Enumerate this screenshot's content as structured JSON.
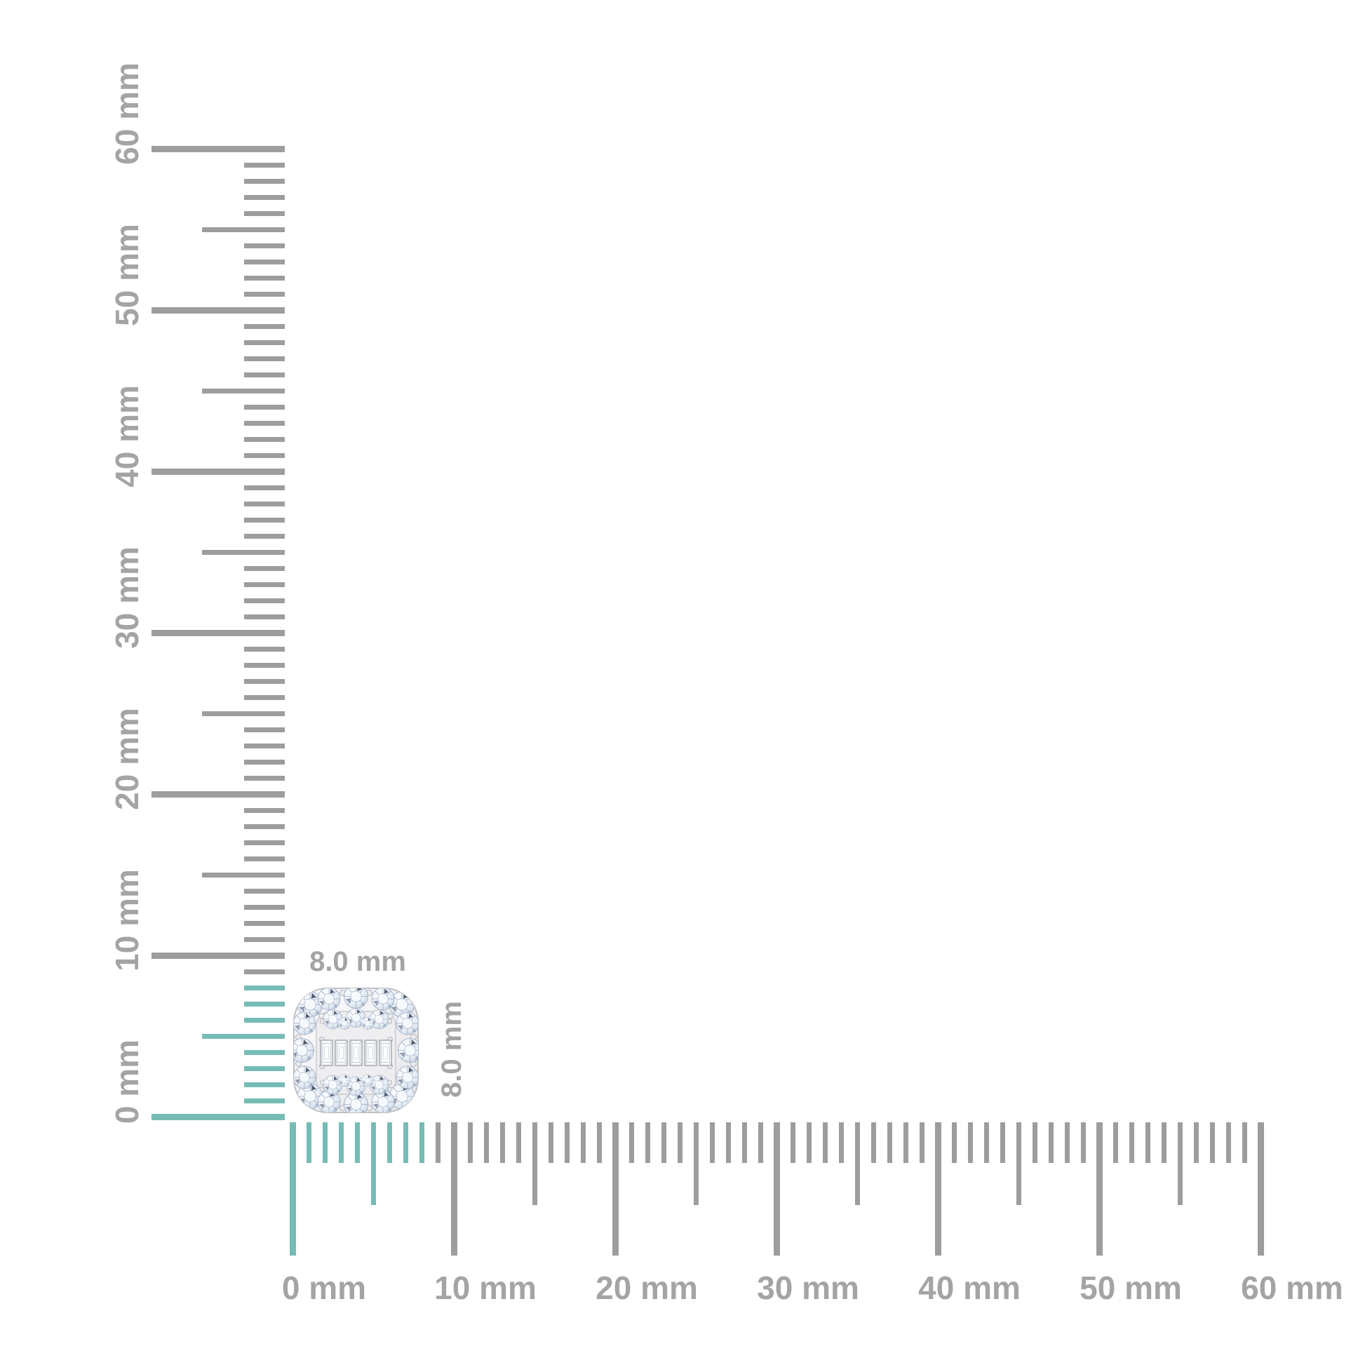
{
  "figure": {
    "type": "product-dimension-diagram",
    "unit": "mm"
  },
  "colors": {
    "background": "#ffffff",
    "tick_gray": "#9d9d9d",
    "tick_highlight_teal": "#76bcb5",
    "label_gray": "#a4a4a4"
  },
  "horizontal_ruler": {
    "min_mm": 0,
    "max_mm": 60,
    "minor_step_mm": 1,
    "mid_tick_every_mm": 5,
    "major_tick_every_mm": 10,
    "highlight_from_mm": 0,
    "highlight_to_mm": 8,
    "labels": [
      {
        "mm": 0,
        "text": "0 mm"
      },
      {
        "mm": 10,
        "text": "10 mm"
      },
      {
        "mm": 20,
        "text": "20 mm"
      },
      {
        "mm": 30,
        "text": "30 mm"
      },
      {
        "mm": 40,
        "text": "40 mm"
      },
      {
        "mm": 50,
        "text": "50 mm"
      },
      {
        "mm": 60,
        "text": "60 mm"
      }
    ]
  },
  "vertical_ruler": {
    "min_mm": 0,
    "max_mm": 60,
    "minor_step_mm": 1,
    "mid_tick_every_mm": 5,
    "major_tick_every_mm": 10,
    "highlight_from_mm": 0,
    "highlight_to_mm": 8,
    "labels": [
      {
        "mm": 0,
        "text": "0 mm"
      },
      {
        "mm": 10,
        "text": "10 mm"
      },
      {
        "mm": 20,
        "text": "20 mm"
      },
      {
        "mm": 30,
        "text": "30 mm"
      },
      {
        "mm": 40,
        "text": "40 mm"
      },
      {
        "mm": 50,
        "text": "50 mm"
      },
      {
        "mm": 60,
        "text": "60 mm"
      }
    ]
  },
  "product": {
    "width_label": "8.0 mm",
    "height_label": "8.0 mm"
  }
}
